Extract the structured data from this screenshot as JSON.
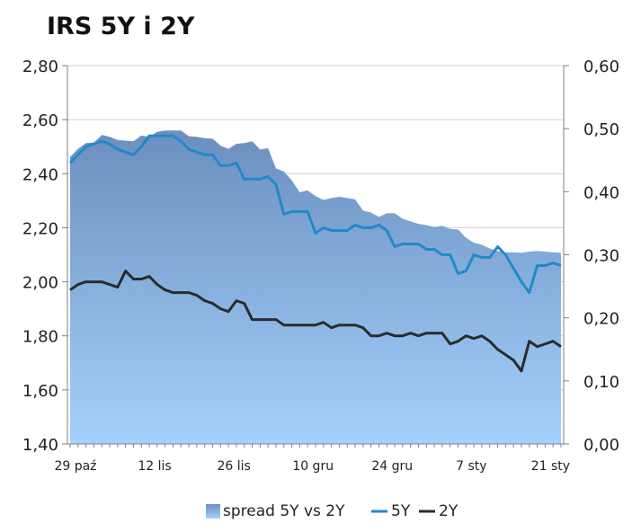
{
  "chart_data": {
    "type": "area",
    "title": "IRS 5Y i 2Y",
    "x_tick_labels": [
      "29 paź",
      "12 lis",
      "26 lis",
      "10 gru",
      "24 gru",
      "7 sty",
      "21 sty"
    ],
    "x_tick_positions": [
      0,
      10,
      20,
      30,
      40,
      50,
      60
    ],
    "y_left": {
      "ticks": [
        "1,40",
        "1,60",
        "1,80",
        "2,00",
        "2,20",
        "2,40",
        "2,60",
        "2,80"
      ],
      "range": [
        1.4,
        2.8
      ]
    },
    "y_right": {
      "ticks": [
        "0,00",
        "0,10",
        "0,20",
        "0,30",
        "0,40",
        "0,50",
        "0,60"
      ],
      "range": [
        0.0,
        0.6
      ]
    },
    "grid": "horizontal",
    "legend_position": "bottom",
    "colors": {
      "area_top": "#6b8fbf",
      "area_bottom": "#a4d0fd",
      "line_5y": "#1f8ac9",
      "line_2y": "#2b2b2b"
    },
    "series": [
      {
        "name": "spread 5Y vs 2Y",
        "axis": "right",
        "type": "area",
        "values": [
          0.455,
          0.468,
          0.477,
          0.478,
          0.49,
          0.487,
          0.482,
          0.481,
          0.48,
          0.489,
          0.487,
          0.495,
          0.497,
          0.497,
          0.497,
          0.488,
          0.487,
          0.485,
          0.484,
          0.473,
          0.468,
          0.476,
          0.477,
          0.48,
          0.467,
          0.469,
          0.437,
          0.432,
          0.418,
          0.399,
          0.402,
          0.393,
          0.387,
          0.39,
          0.392,
          0.39,
          0.388,
          0.37,
          0.367,
          0.36,
          0.366,
          0.366,
          0.357,
          0.353,
          0.349,
          0.347,
          0.344,
          0.346,
          0.341,
          0.34,
          0.327,
          0.319,
          0.316,
          0.31,
          0.306,
          0.304,
          0.304,
          0.303,
          0.305,
          0.306,
          0.305,
          0.304,
          0.303
        ]
      },
      {
        "name": "5Y",
        "axis": "left",
        "type": "line",
        "values": [
          2.44,
          2.47,
          2.5,
          2.51,
          2.52,
          2.51,
          2.49,
          2.48,
          2.47,
          2.5,
          2.54,
          2.54,
          2.54,
          2.54,
          2.52,
          2.49,
          2.48,
          2.47,
          2.47,
          2.43,
          2.43,
          2.44,
          2.38,
          2.38,
          2.38,
          2.39,
          2.36,
          2.25,
          2.26,
          2.26,
          2.26,
          2.18,
          2.2,
          2.19,
          2.19,
          2.19,
          2.21,
          2.2,
          2.2,
          2.21,
          2.19,
          2.13,
          2.14,
          2.14,
          2.14,
          2.12,
          2.12,
          2.1,
          2.1,
          2.03,
          2.04,
          2.1,
          2.09,
          2.09,
          2.13,
          2.1,
          2.05,
          2.0,
          1.96,
          2.06,
          2.06,
          2.07,
          2.06
        ]
      },
      {
        "name": "2Y",
        "axis": "left",
        "type": "line",
        "values": [
          1.97,
          1.99,
          2.0,
          2.0,
          2.0,
          1.99,
          1.98,
          2.04,
          2.01,
          2.01,
          2.02,
          1.99,
          1.97,
          1.96,
          1.96,
          1.96,
          1.95,
          1.93,
          1.92,
          1.9,
          1.89,
          1.93,
          1.92,
          1.86,
          1.86,
          1.86,
          1.86,
          1.84,
          1.84,
          1.84,
          1.84,
          1.84,
          1.85,
          1.83,
          1.84,
          1.84,
          1.84,
          1.83,
          1.8,
          1.8,
          1.81,
          1.8,
          1.8,
          1.81,
          1.8,
          1.81,
          1.81,
          1.81,
          1.77,
          1.78,
          1.8,
          1.79,
          1.8,
          1.78,
          1.75,
          1.73,
          1.71,
          1.67,
          1.78,
          1.76,
          1.77,
          1.78,
          1.76
        ]
      }
    ]
  }
}
